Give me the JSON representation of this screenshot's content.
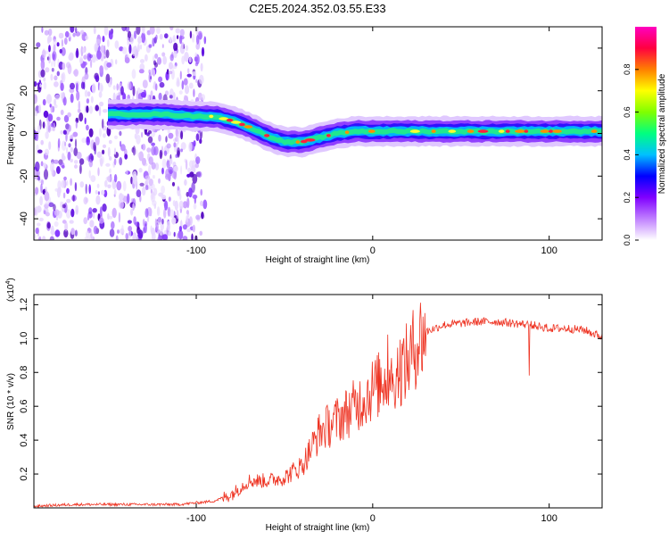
{
  "title": "C2E5.2024.352.03.55.E33",
  "chart_data": [
    {
      "type": "heatmap",
      "xlabel": "Height of straight line (km)",
      "ylabel": "Frequency (Hz)",
      "xlim": [
        -192,
        130
      ],
      "ylim": [
        -50,
        50
      ],
      "x_ticks": [
        "-100",
        "0",
        "100"
      ],
      "y_ticks": [
        "40",
        "20",
        "0",
        "-20",
        "-40"
      ],
      "grid": false,
      "colorbar": {
        "label": "Normalized spectral amplitude",
        "range": [
          0,
          1
        ],
        "ticks": [
          "0.0",
          "0.2",
          "0.4",
          "0.6",
          "0.8"
        ],
        "colors": [
          "#ffffff",
          "#c080ff",
          "#8000ff",
          "#0000ff",
          "#00c0ff",
          "#00ff80",
          "#80ff00",
          "#ffff00",
          "#ff8000",
          "#ff0040",
          "#ff00c0"
        ]
      },
      "ridge": {
        "x": [
          -180,
          -160,
          -140,
          -120,
          -100,
          -90,
          -80,
          -70,
          -60,
          -50,
          -40,
          -30,
          -20,
          -10,
          0,
          10,
          20,
          40,
          60,
          80,
          100,
          130
        ],
        "frequency": [
          8,
          9,
          9,
          9,
          8,
          8,
          6,
          3,
          -1,
          -4,
          -4,
          -2,
          0,
          1,
          1,
          1,
          1,
          1,
          1,
          1,
          1,
          1
        ]
      },
      "noise_region_x": [
        -192,
        -95
      ]
    },
    {
      "type": "line",
      "xlabel": "Height of straight line (km)",
      "ylabel": "SNR (10 * v/v)",
      "y_multiplier": "(x10",
      "y_multiplier_exp": "4",
      "y_multiplier_close": ")",
      "xlim": [
        -192,
        130
      ],
      "ylim": [
        0,
        1.26
      ],
      "x_ticks": [
        "-100",
        "0",
        "100"
      ],
      "y_ticks": [
        "1.2",
        "1.0",
        "0.8",
        "0.6",
        "0.4",
        "0.2"
      ],
      "grid": false,
      "series": [
        {
          "color": "#ee3322",
          "x": [
            -192,
            -170,
            -150,
            -130,
            -110,
            -90,
            -80,
            -70,
            -60,
            -50,
            -40,
            -30,
            -20,
            -10,
            0,
            10,
            20,
            25,
            30,
            40,
            50,
            60,
            70,
            80,
            90,
            95,
            100,
            110,
            120,
            130
          ],
          "values": [
            0.01,
            0.02,
            0.02,
            0.02,
            0.02,
            0.04,
            0.08,
            0.16,
            0.16,
            0.18,
            0.25,
            0.45,
            0.52,
            0.6,
            0.7,
            0.78,
            0.86,
            0.98,
            1.04,
            1.08,
            1.09,
            1.1,
            1.1,
            1.09,
            1.08,
            1.07,
            1.06,
            1.06,
            1.05,
            1.01
          ]
        }
      ]
    }
  ]
}
